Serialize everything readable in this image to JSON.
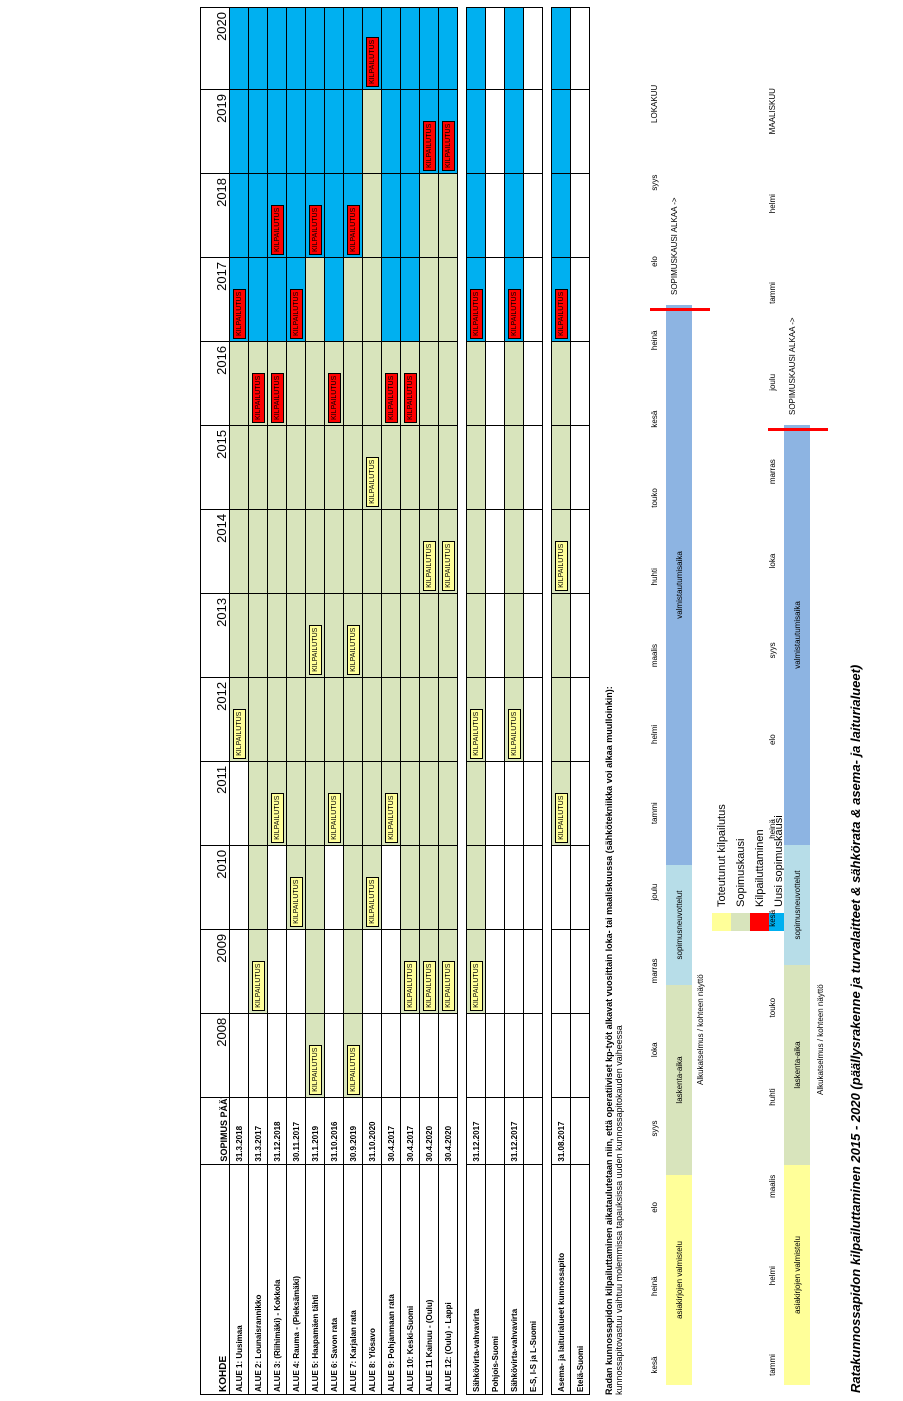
{
  "title": "Ratakunnossapidon kilpailuttaminen 2015 - 2020 (päällysrakenne ja turvalaitteet & sähkörata & asema- ja laiturialueet)",
  "legend": [
    {
      "label": "Toteutunut kilpailutus",
      "color": "#ffff99"
    },
    {
      "label": "Sopimuskausi",
      "color": "#d8e4bc"
    },
    {
      "label": "Kilpailuttaminen",
      "color": "#ff0000"
    },
    {
      "label": "Uusi sopimuskausi",
      "color": "#00b0f0"
    }
  ],
  "table": {
    "col_kohde": "KOHDE",
    "col_end": "SOPIMUS PÄÄTTYY",
    "years": [
      "2008",
      "2009",
      "2010",
      "2011",
      "2012",
      "2013",
      "2014",
      "2015",
      "2016",
      "2017",
      "2018",
      "2019",
      "2020"
    ],
    "tag_kilp": "KILPAILUTUS",
    "rows": [
      {
        "name": "ALUE 1: Uusimaa",
        "end": "31.3.2018"
      },
      {
        "name": "ALUE 2: Lounaisrannikko",
        "end": "31.3.2017"
      },
      {
        "name": "ALUE 3: (Riihimäki) - Kokkola",
        "end": "31.12.2018"
      },
      {
        "name": "ALUE 4: Rauma - (Pieksämäki)",
        "end": "30.11.2017"
      },
      {
        "name": "ALUE 5: Haapamäen tähti",
        "end": "31.1.2019"
      },
      {
        "name": "ALUE 6: Savon rata",
        "end": "31.10.2016"
      },
      {
        "name": "ALUE 7: Karjalan rata",
        "end": "30.9.2019"
      },
      {
        "name": "ALUE 8: Ylösavo",
        "end": "31.10.2020"
      },
      {
        "name": "ALUE 9: Pohjanmaan rata",
        "end": "30.4.2017"
      },
      {
        "name": "ALUE 10: Keski-Suomi",
        "end": "30.4.2017"
      },
      {
        "name": "ALUE 11 Kainuu - (Oulu)",
        "end": "30.4.2020"
      },
      {
        "name": "ALUE 12: (Oulu) - Lappi",
        "end": "30.4.2020"
      }
    ],
    "rows2": [
      {
        "name": "Sähkövirta-vahvavirta",
        "end": "31.12.2017"
      },
      {
        "name": "Pohjois-Suomi",
        "end": ""
      },
      {
        "name": "Sähkövirta-vahvavirta",
        "end": "31.12.2017"
      },
      {
        "name": "E-S, I-S ja L-Suomi",
        "end": ""
      }
    ],
    "rows3": [
      {
        "name": "Asema- ja laiturialueet kunnossapito",
        "end": "31.08.2017"
      },
      {
        "name": "Etelä-Suomi",
        "end": ""
      }
    ]
  },
  "note": {
    "line1": "Radan kunnossapidon kilpailuttaminen aikataulutetaan niin, että operatiiviset kp-työt alkavat vuosittain loka- tai maaliskuussa (sähkötekniikka voi alkaa muulloinkin):",
    "line2": "kunnossapitovastuu vaihtuu molemmissa tapauksissa uuden kunnossapitokauden vaiheessa"
  },
  "timeline1": {
    "months": [
      "kesä",
      "heinä",
      "elo",
      "syys",
      "loka",
      "marras",
      "joulu",
      "tammi",
      "helmi",
      "maalis",
      "huhti",
      "touko",
      "kesä",
      "heinä",
      "elo",
      "syys",
      "LOKAKUU"
    ],
    "bars": [
      "asiakirjojen valmistelu",
      "laskenta-aika",
      "sopimusneuvottelut",
      "valmistautumisaika"
    ],
    "sub": "Alkukatselmus / kohteen näyttö",
    "start": "SOPIMUSKAUSI ALKAA ->"
  },
  "timeline2": {
    "months": [
      "tammi",
      "helmi",
      "maalis",
      "huhti",
      "touko",
      "kesä",
      "heinä",
      "elo",
      "syys",
      "loka",
      "marras",
      "joulu",
      "tammi",
      "helmi",
      "MAALISKUU"
    ],
    "bars": [
      "asiakirjojen valmistelu",
      "laskenta-aika",
      "sopimusneuvottelut",
      "valmistautumisaika"
    ],
    "sub": "Alkukatselmus / kohteen näyttö",
    "start": "SOPIMUSKAUSI ALKAA ->"
  }
}
